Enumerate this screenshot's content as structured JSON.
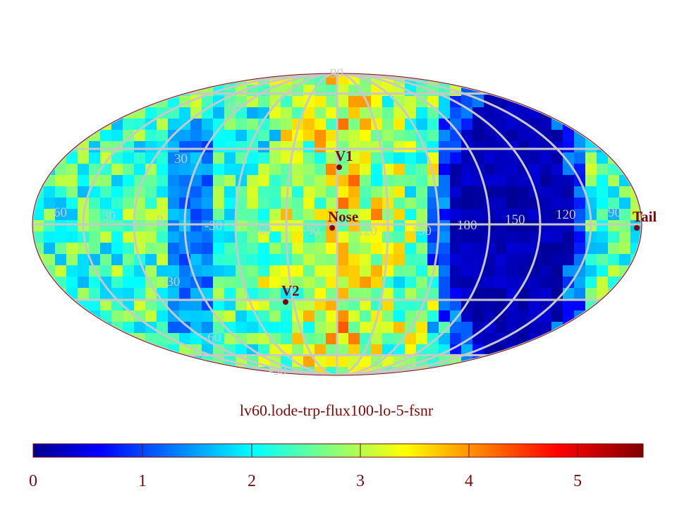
{
  "map": {
    "title": "lv60.lode-trp-flux100-lo-5-fsnr",
    "projection": "Mollweide (Aitoff-like) all-sky",
    "grid_color": "#c8c8c8",
    "marker_color": "#7a0a0a"
  },
  "grid_labels": {
    "latitude": [
      {
        "text": "90"
      },
      {
        "text": "60"
      },
      {
        "text": "30"
      },
      {
        "text": "-30"
      },
      {
        "text": "-60"
      },
      {
        "text": "-90"
      }
    ],
    "longitude": [
      {
        "text": "60"
      },
      {
        "text": "30"
      },
      {
        "text": "0"
      },
      {
        "text": "-30"
      },
      {
        "text": "-60"
      },
      {
        "text": "-90"
      },
      {
        "text": "-120"
      },
      {
        "text": "-150"
      },
      {
        "text": "180"
      },
      {
        "text": "150"
      },
      {
        "text": "120"
      },
      {
        "text": "90"
      }
    ]
  },
  "markers": [
    {
      "label": "V1"
    },
    {
      "label": "Nose"
    },
    {
      "label": "V2"
    },
    {
      "label": "Tail"
    }
  ],
  "colorbar": {
    "min": 0,
    "max": 5.6,
    "ticks": [
      "0",
      "1",
      "2",
      "3",
      "4",
      "5"
    ],
    "colormap": "jet"
  }
}
